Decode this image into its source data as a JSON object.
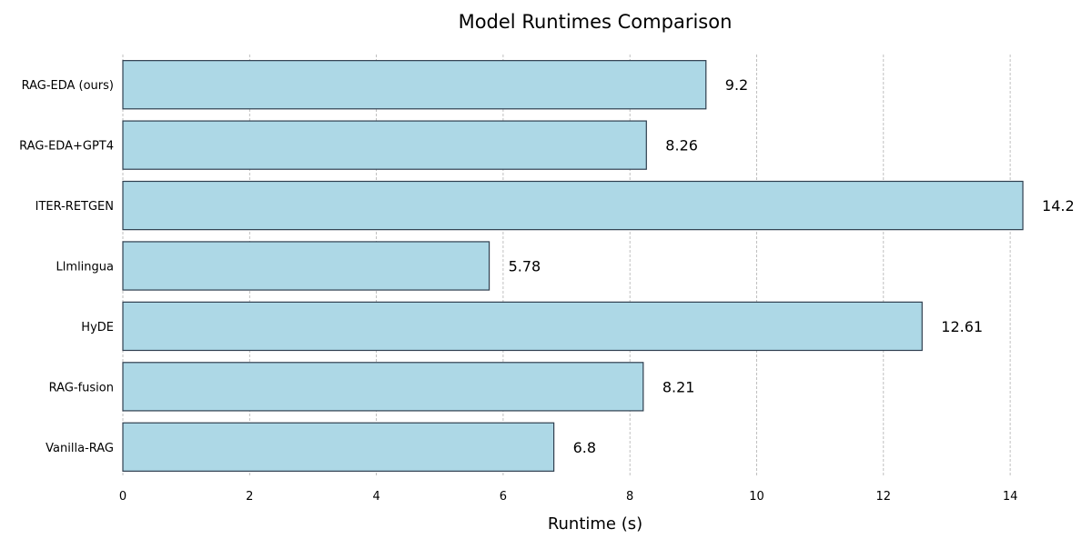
{
  "chart_data": {
    "type": "bar",
    "orientation": "horizontal",
    "title": "Model Runtimes Comparison",
    "xlabel": "Runtime (s)",
    "ylabel": "",
    "xlim": [
      0,
      14.5
    ],
    "xticks": [
      0,
      2,
      4,
      6,
      8,
      10,
      12,
      14
    ],
    "grid": {
      "x": true,
      "y": false,
      "style": "dashed"
    },
    "categories": [
      "RAG-EDA (ours)",
      "RAG-EDA+GPT4",
      "ITER-RETGEN",
      "Llmlingua",
      "HyDE",
      "RAG-fusion",
      "Vanilla-RAG"
    ],
    "values": [
      9.2,
      8.26,
      14.2,
      5.78,
      12.61,
      8.21,
      6.8
    ],
    "value_labels": [
      "9.2",
      "8.26",
      "14.2",
      "5.78",
      "12.61",
      "8.21",
      "6.8"
    ],
    "colors": {
      "bar_fill": "#add8e6",
      "bar_edge": "#2f3f4f",
      "grid": "#b0b0b0",
      "text": "#000000"
    }
  }
}
